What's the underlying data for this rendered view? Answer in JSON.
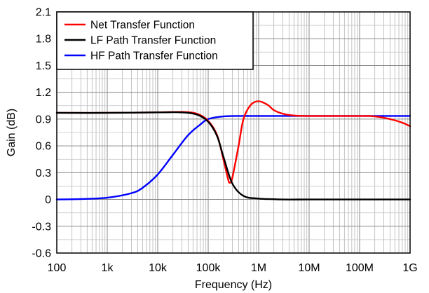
{
  "chart_data": {
    "type": "line",
    "title": "",
    "xlabel": "Frequency (Hz)",
    "ylabel": "Gain (dB)",
    "xscale": "log",
    "xlim": [
      100,
      1000000000
    ],
    "ylim": [
      -0.6,
      2.1
    ],
    "grid": true,
    "legend_position": "top-left",
    "x_ticks": [
      {
        "value": 100,
        "label": "100"
      },
      {
        "value": 1000,
        "label": "1k"
      },
      {
        "value": 10000,
        "label": "10k"
      },
      {
        "value": 100000,
        "label": "100k"
      },
      {
        "value": 1000000,
        "label": "1M"
      },
      {
        "value": 10000000,
        "label": "10M"
      },
      {
        "value": 100000000,
        "label": "100M"
      },
      {
        "value": 1000000000,
        "label": "1G"
      }
    ],
    "y_ticks": [
      {
        "value": -0.6,
        "label": "-0.6"
      },
      {
        "value": -0.3,
        "label": "-0.3"
      },
      {
        "value": 0,
        "label": "0"
      },
      {
        "value": 0.3,
        "label": "0.3"
      },
      {
        "value": 0.6,
        "label": "0.6"
      },
      {
        "value": 0.9,
        "label": "0.9"
      },
      {
        "value": 1.2,
        "label": "1.2"
      },
      {
        "value": 1.5,
        "label": "1.5"
      },
      {
        "value": 1.8,
        "label": "1.8"
      },
      {
        "value": 2.1,
        "label": "2.1"
      }
    ],
    "series": [
      {
        "name": "Net Transfer Function",
        "color": "#ff0000",
        "points": [
          [
            100,
            0.97
          ],
          [
            1000,
            0.97
          ],
          [
            10000,
            0.975
          ],
          [
            30000,
            0.98
          ],
          [
            60000,
            0.96
          ],
          [
            100000,
            0.88
          ],
          [
            150000,
            0.72
          ],
          [
            200000,
            0.45
          ],
          [
            250000,
            0.22
          ],
          [
            270000,
            0.19
          ],
          [
            300000,
            0.24
          ],
          [
            400000,
            0.6
          ],
          [
            500000,
            0.9
          ],
          [
            700000,
            1.06
          ],
          [
            1000000,
            1.1
          ],
          [
            1500000,
            1.06
          ],
          [
            2000000,
            1.0
          ],
          [
            3000000,
            0.96
          ],
          [
            5000000,
            0.94
          ],
          [
            10000000,
            0.935
          ],
          [
            100000000,
            0.935
          ],
          [
            200000000,
            0.93
          ],
          [
            400000000,
            0.9
          ],
          [
            700000000,
            0.86
          ],
          [
            1000000000,
            0.82
          ]
        ]
      },
      {
        "name": "LF Path Transfer Function",
        "color": "#000000",
        "points": [
          [
            100,
            0.97
          ],
          [
            1000,
            0.97
          ],
          [
            10000,
            0.975
          ],
          [
            30000,
            0.975
          ],
          [
            60000,
            0.95
          ],
          [
            100000,
            0.87
          ],
          [
            150000,
            0.71
          ],
          [
            200000,
            0.48
          ],
          [
            300000,
            0.18
          ],
          [
            500000,
            0.04
          ],
          [
            1000000,
            0.01
          ],
          [
            3000000,
            0.0
          ],
          [
            10000000,
            0.0
          ],
          [
            100000000,
            0.0
          ],
          [
            1000000000,
            0.0
          ]
        ]
      },
      {
        "name": "HF Path Transfer Function",
        "color": "#0000ff",
        "points": [
          [
            100,
            0.0
          ],
          [
            300,
            0.005
          ],
          [
            1000,
            0.02
          ],
          [
            3000,
            0.07
          ],
          [
            5000,
            0.13
          ],
          [
            10000,
            0.28
          ],
          [
            20000,
            0.5
          ],
          [
            40000,
            0.72
          ],
          [
            70000,
            0.84
          ],
          [
            100000,
            0.9
          ],
          [
            200000,
            0.93
          ],
          [
            500000,
            0.935
          ],
          [
            1000000,
            0.935
          ],
          [
            10000000,
            0.935
          ],
          [
            100000000,
            0.935
          ],
          [
            1000000000,
            0.935
          ]
        ]
      }
    ]
  }
}
